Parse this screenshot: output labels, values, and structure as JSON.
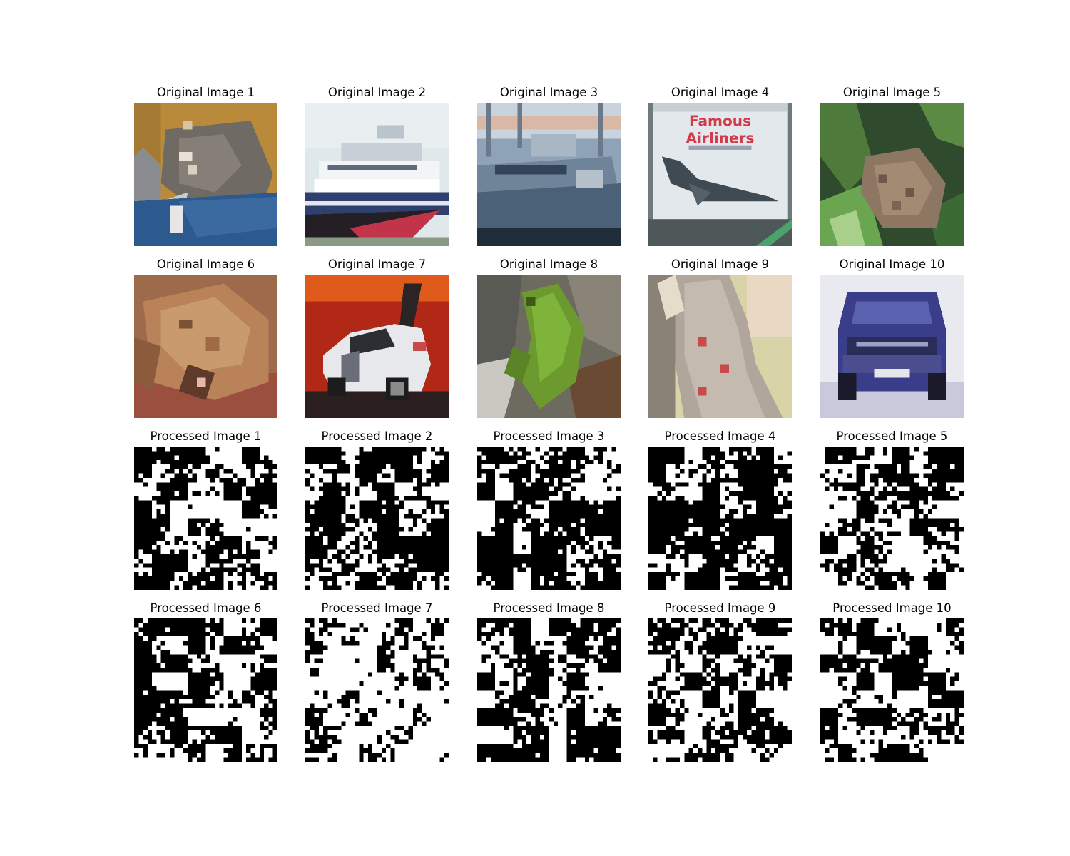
{
  "figure": {
    "original_titles": [
      "Original Image 1",
      "Original Image 2",
      "Original Image 3",
      "Original Image 4",
      "Original Image 5",
      "Original Image 6",
      "Original Image 7",
      "Original Image 8",
      "Original Image 9",
      "Original Image 10"
    ],
    "processed_titles": [
      "Processed Image 1",
      "Processed Image 2",
      "Processed Image 3",
      "Processed Image 4",
      "Processed Image 5",
      "Processed Image 6",
      "Processed Image 7",
      "Processed Image 8",
      "Processed Image 9",
      "Processed Image 10"
    ],
    "inset_texts": [
      "Famous",
      "Airliners"
    ],
    "colors": {
      "background": "#ffffff",
      "binary_black": "#000000",
      "binary_white": "#ffffff"
    }
  }
}
